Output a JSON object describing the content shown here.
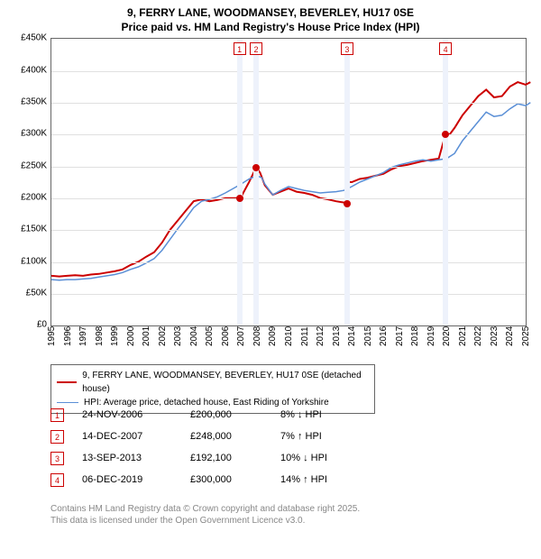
{
  "title": {
    "line1": "9, FERRY LANE, WOODMANSEY, BEVERLEY, HU17 0SE",
    "line2": "Price paid vs. HM Land Registry's House Price Index (HPI)"
  },
  "chart": {
    "type": "line",
    "background_color": "#ffffff",
    "grid_color": "#e0e0e0",
    "border_color": "#666666",
    "x_years": [
      1995,
      1996,
      1997,
      1998,
      1999,
      2000,
      2001,
      2002,
      2003,
      2004,
      2005,
      2006,
      2007,
      2008,
      2009,
      2010,
      2011,
      2012,
      2013,
      2014,
      2015,
      2016,
      2017,
      2018,
      2019,
      2020,
      2021,
      2022,
      2023,
      2024,
      2025
    ],
    "y": {
      "min": 0,
      "max": 450000,
      "step": 50000,
      "prefix": "£",
      "suffix": "K",
      "divisor": 1000
    },
    "bands": [
      {
        "year": 2006.9,
        "width_years": 0.35
      },
      {
        "year": 2007.95,
        "width_years": 0.35
      },
      {
        "year": 2013.7,
        "width_years": 0.35
      },
      {
        "year": 2019.93,
        "width_years": 0.35
      }
    ],
    "band_color": "#eef2fb",
    "markers": [
      {
        "n": "1",
        "year": 2006.9
      },
      {
        "n": "2",
        "year": 2007.95
      },
      {
        "n": "3",
        "year": 2013.7
      },
      {
        "n": "4",
        "year": 2019.93
      }
    ],
    "marker_border": "#cc0000",
    "series": [
      {
        "name": "9, FERRY LANE, WOODMANSEY, BEVERLEY, HU17 0SE (detached house)",
        "color": "#cc0000",
        "width": 2,
        "points": [
          [
            1995,
            78000
          ],
          [
            1995.5,
            77000
          ],
          [
            1996,
            78000
          ],
          [
            1996.5,
            79000
          ],
          [
            1997,
            78000
          ],
          [
            1997.5,
            80000
          ],
          [
            1998,
            81000
          ],
          [
            1998.5,
            83000
          ],
          [
            1999,
            85000
          ],
          [
            1999.5,
            88000
          ],
          [
            2000,
            95000
          ],
          [
            2000.5,
            100000
          ],
          [
            2001,
            108000
          ],
          [
            2001.5,
            115000
          ],
          [
            2002,
            130000
          ],
          [
            2002.5,
            150000
          ],
          [
            2003,
            165000
          ],
          [
            2003.5,
            180000
          ],
          [
            2004,
            195000
          ],
          [
            2004.5,
            198000
          ],
          [
            2005,
            195000
          ],
          [
            2005.5,
            197000
          ],
          [
            2006,
            200000
          ],
          [
            2006.5,
            200000
          ],
          [
            2006.9,
            200000
          ],
          [
            2007.0,
            202000
          ],
          [
            2007.5,
            225000
          ],
          [
            2007.95,
            248000
          ],
          [
            2008.2,
            240000
          ],
          [
            2008.5,
            220000
          ],
          [
            2009,
            205000
          ],
          [
            2009.5,
            210000
          ],
          [
            2010,
            215000
          ],
          [
            2010.5,
            210000
          ],
          [
            2011,
            208000
          ],
          [
            2011.5,
            205000
          ],
          [
            2012,
            200000
          ],
          [
            2012.5,
            198000
          ],
          [
            2013,
            195000
          ],
          [
            2013.5,
            193000
          ],
          [
            2013.7,
            192100
          ],
          [
            2013.8,
            225000
          ],
          [
            2014,
            225000
          ],
          [
            2014.5,
            230000
          ],
          [
            2015,
            232000
          ],
          [
            2015.5,
            235000
          ],
          [
            2016,
            238000
          ],
          [
            2016.5,
            245000
          ],
          [
            2017,
            250000
          ],
          [
            2017.5,
            252000
          ],
          [
            2018,
            255000
          ],
          [
            2018.5,
            258000
          ],
          [
            2019,
            260000
          ],
          [
            2019.5,
            262000
          ],
          [
            2019.93,
            300000
          ],
          [
            2020.2,
            300000
          ],
          [
            2020.5,
            310000
          ],
          [
            2021,
            330000
          ],
          [
            2021.5,
            345000
          ],
          [
            2022,
            360000
          ],
          [
            2022.5,
            370000
          ],
          [
            2023,
            358000
          ],
          [
            2023.5,
            360000
          ],
          [
            2024,
            375000
          ],
          [
            2024.5,
            382000
          ],
          [
            2025,
            378000
          ],
          [
            2025.3,
            382000
          ]
        ],
        "dots": [
          {
            "year": 2006.9,
            "value": 200000
          },
          {
            "year": 2007.95,
            "value": 248000
          },
          {
            "year": 2013.7,
            "value": 192100
          },
          {
            "year": 2019.93,
            "value": 300000
          }
        ]
      },
      {
        "name": "HPI: Average price, detached house, East Riding of Yorkshire",
        "color": "#5a8fd6",
        "width": 1.5,
        "points": [
          [
            1995,
            72000
          ],
          [
            1995.5,
            71000
          ],
          [
            1996,
            72000
          ],
          [
            1996.5,
            72000
          ],
          [
            1997,
            73000
          ],
          [
            1997.5,
            74000
          ],
          [
            1998,
            76000
          ],
          [
            1998.5,
            78000
          ],
          [
            1999,
            80000
          ],
          [
            1999.5,
            83000
          ],
          [
            2000,
            88000
          ],
          [
            2000.5,
            92000
          ],
          [
            2001,
            98000
          ],
          [
            2001.5,
            105000
          ],
          [
            2002,
            118000
          ],
          [
            2002.5,
            135000
          ],
          [
            2003,
            152000
          ],
          [
            2003.5,
            168000
          ],
          [
            2004,
            185000
          ],
          [
            2004.5,
            195000
          ],
          [
            2005,
            198000
          ],
          [
            2005.5,
            202000
          ],
          [
            2006,
            208000
          ],
          [
            2006.5,
            215000
          ],
          [
            2007,
            222000
          ],
          [
            2007.5,
            230000
          ],
          [
            2008,
            235000
          ],
          [
            2008.3,
            232000
          ],
          [
            2008.5,
            222000
          ],
          [
            2009,
            205000
          ],
          [
            2009.5,
            212000
          ],
          [
            2010,
            218000
          ],
          [
            2010.5,
            215000
          ],
          [
            2011,
            212000
          ],
          [
            2011.5,
            210000
          ],
          [
            2012,
            208000
          ],
          [
            2012.5,
            209000
          ],
          [
            2013,
            210000
          ],
          [
            2013.5,
            212000
          ],
          [
            2014,
            218000
          ],
          [
            2014.5,
            225000
          ],
          [
            2015,
            230000
          ],
          [
            2015.5,
            235000
          ],
          [
            2016,
            240000
          ],
          [
            2016.5,
            248000
          ],
          [
            2017,
            252000
          ],
          [
            2017.5,
            255000
          ],
          [
            2018,
            258000
          ],
          [
            2018.5,
            260000
          ],
          [
            2019,
            258000
          ],
          [
            2019.5,
            260000
          ],
          [
            2020,
            262000
          ],
          [
            2020.5,
            270000
          ],
          [
            2021,
            290000
          ],
          [
            2021.5,
            305000
          ],
          [
            2022,
            320000
          ],
          [
            2022.5,
            335000
          ],
          [
            2023,
            328000
          ],
          [
            2023.5,
            330000
          ],
          [
            2024,
            340000
          ],
          [
            2024.5,
            348000
          ],
          [
            2025,
            345000
          ],
          [
            2025.3,
            350000
          ]
        ],
        "dots": []
      }
    ]
  },
  "legend": [
    {
      "color": "#cc0000",
      "width": 2,
      "label": "9, FERRY LANE, WOODMANSEY, BEVERLEY, HU17 0SE (detached house)"
    },
    {
      "color": "#5a8fd6",
      "width": 1.5,
      "label": "HPI: Average price, detached house, East Riding of Yorkshire"
    }
  ],
  "events": [
    {
      "n": "1",
      "date": "24-NOV-2006",
      "price": "£200,000",
      "delta": "8% ↓ HPI"
    },
    {
      "n": "2",
      "date": "14-DEC-2007",
      "price": "£248,000",
      "delta": "7% ↑ HPI"
    },
    {
      "n": "3",
      "date": "13-SEP-2013",
      "price": "£192,100",
      "delta": "10% ↓ HPI"
    },
    {
      "n": "4",
      "date": "06-DEC-2019",
      "price": "£300,000",
      "delta": "14% ↑ HPI"
    }
  ],
  "footer": {
    "line1": "Contains HM Land Registry data © Crown copyright and database right 2025.",
    "line2": "This data is licensed under the Open Government Licence v3.0."
  }
}
